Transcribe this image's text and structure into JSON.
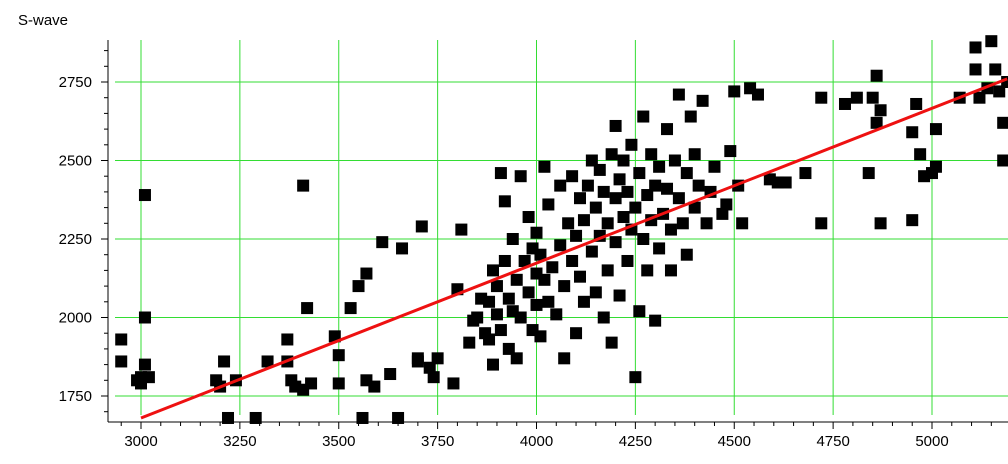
{
  "chart_data": {
    "type": "scatter",
    "title": "",
    "ylabel": "S-wave",
    "xlabel": "",
    "xlim": [
      2940,
      5190
    ],
    "ylim": [
      1680,
      2880
    ],
    "x_ticks": [
      3000,
      3250,
      3500,
      3750,
      4000,
      4250,
      4500,
      4750,
      5000
    ],
    "y_ticks": [
      1750,
      2000,
      2250,
      2500,
      2750
    ],
    "grid": true,
    "colors": {
      "grid": "#33dd33",
      "points": "#000000",
      "fit_line": "#ee1111",
      "axis": "#000000"
    },
    "series": [
      {
        "type": "scatter",
        "points": [
          [
            2950,
            1930
          ],
          [
            2950,
            1860
          ],
          [
            2990,
            1800
          ],
          [
            3000,
            1790
          ],
          [
            3000,
            1810
          ],
          [
            3010,
            1850
          ],
          [
            3010,
            2000
          ],
          [
            3010,
            2390
          ],
          [
            3020,
            1810
          ],
          [
            3190,
            1800
          ],
          [
            3200,
            1780
          ],
          [
            3210,
            1860
          ],
          [
            3220,
            1680
          ],
          [
            3240,
            1800
          ],
          [
            3290,
            1680
          ],
          [
            3320,
            1860
          ],
          [
            3370,
            1930
          ],
          [
            3370,
            1860
          ],
          [
            3380,
            1800
          ],
          [
            3390,
            1780
          ],
          [
            3410,
            1770
          ],
          [
            3410,
            2420
          ],
          [
            3420,
            2030
          ],
          [
            3430,
            1790
          ],
          [
            3490,
            1940
          ],
          [
            3500,
            1880
          ],
          [
            3500,
            1790
          ],
          [
            3530,
            2030
          ],
          [
            3550,
            2100
          ],
          [
            3560,
            1680
          ],
          [
            3570,
            2140
          ],
          [
            3570,
            1800
          ],
          [
            3590,
            1780
          ],
          [
            3610,
            2240
          ],
          [
            3630,
            1820
          ],
          [
            3650,
            1680
          ],
          [
            3660,
            2220
          ],
          [
            3700,
            1870
          ],
          [
            3700,
            1860
          ],
          [
            3710,
            2290
          ],
          [
            3730,
            1840
          ],
          [
            3740,
            1810
          ],
          [
            3750,
            1870
          ],
          [
            3790,
            1790
          ],
          [
            3800,
            2090
          ],
          [
            3810,
            2280
          ],
          [
            3830,
            1920
          ],
          [
            3840,
            1990
          ],
          [
            3850,
            2000
          ],
          [
            3860,
            2060
          ],
          [
            3870,
            1950
          ],
          [
            3880,
            1930
          ],
          [
            3880,
            2050
          ],
          [
            3890,
            1850
          ],
          [
            3890,
            2150
          ],
          [
            3900,
            2010
          ],
          [
            3900,
            2100
          ],
          [
            3910,
            1960
          ],
          [
            3910,
            2460
          ],
          [
            3920,
            2370
          ],
          [
            3920,
            2180
          ],
          [
            3930,
            1900
          ],
          [
            3930,
            2060
          ],
          [
            3940,
            2020
          ],
          [
            3940,
            2250
          ],
          [
            3950,
            1870
          ],
          [
            3950,
            2120
          ],
          [
            3960,
            2000
          ],
          [
            3960,
            2450
          ],
          [
            3970,
            2180
          ],
          [
            3980,
            2080
          ],
          [
            3980,
            2320
          ],
          [
            3990,
            1960
          ],
          [
            3990,
            2220
          ],
          [
            4000,
            2040
          ],
          [
            4000,
            2270
          ],
          [
            4000,
            2140
          ],
          [
            4010,
            1940
          ],
          [
            4010,
            2200
          ],
          [
            4020,
            2120
          ],
          [
            4020,
            2480
          ],
          [
            4030,
            2050
          ],
          [
            4030,
            2360
          ],
          [
            4040,
            2160
          ],
          [
            4050,
            2010
          ],
          [
            4060,
            2420
          ],
          [
            4060,
            2230
          ],
          [
            4070,
            1870
          ],
          [
            4070,
            2100
          ],
          [
            4080,
            2300
          ],
          [
            4090,
            2180
          ],
          [
            4090,
            2450
          ],
          [
            4100,
            1950
          ],
          [
            4100,
            2260
          ],
          [
            4110,
            2130
          ],
          [
            4110,
            2380
          ],
          [
            4120,
            2310
          ],
          [
            4120,
            2050
          ],
          [
            4130,
            2420
          ],
          [
            4140,
            2210
          ],
          [
            4140,
            2500
          ],
          [
            4150,
            2080
          ],
          [
            4150,
            2350
          ],
          [
            4160,
            2260
          ],
          [
            4160,
            2470
          ],
          [
            4170,
            2000
          ],
          [
            4170,
            2400
          ],
          [
            4180,
            2150
          ],
          [
            4180,
            2300
          ],
          [
            4190,
            2520
          ],
          [
            4190,
            1920
          ],
          [
            4200,
            2380
          ],
          [
            4200,
            2240
          ],
          [
            4200,
            2610
          ],
          [
            4210,
            2070
          ],
          [
            4210,
            2440
          ],
          [
            4220,
            2320
          ],
          [
            4220,
            2500
          ],
          [
            4230,
            2180
          ],
          [
            4230,
            2400
          ],
          [
            4240,
            2280
          ],
          [
            4240,
            2550
          ],
          [
            4250,
            1810
          ],
          [
            4250,
            2350
          ],
          [
            4260,
            2460
          ],
          [
            4260,
            2020
          ],
          [
            4270,
            2250
          ],
          [
            4270,
            2640
          ],
          [
            4280,
            2390
          ],
          [
            4280,
            2150
          ],
          [
            4290,
            2310
          ],
          [
            4290,
            2520
          ],
          [
            4300,
            2420
          ],
          [
            4300,
            1990
          ],
          [
            4310,
            2220
          ],
          [
            4310,
            2480
          ],
          [
            4320,
            2330
          ],
          [
            4330,
            2410
          ],
          [
            4330,
            2600
          ],
          [
            4340,
            2280
          ],
          [
            4340,
            2150
          ],
          [
            4350,
            2500
          ],
          [
            4360,
            2380
          ],
          [
            4360,
            2710
          ],
          [
            4370,
            2300
          ],
          [
            4380,
            2460
          ],
          [
            4380,
            2200
          ],
          [
            4390,
            2640
          ],
          [
            4400,
            2350
          ],
          [
            4400,
            2520
          ],
          [
            4410,
            2420
          ],
          [
            4420,
            2690
          ],
          [
            4430,
            2300
          ],
          [
            4440,
            2400
          ],
          [
            4450,
            2480
          ],
          [
            4470,
            2330
          ],
          [
            4480,
            2360
          ],
          [
            4490,
            2530
          ],
          [
            4500,
            2720
          ],
          [
            4510,
            2420
          ],
          [
            4520,
            2300
          ],
          [
            4540,
            2730
          ],
          [
            4560,
            2710
          ],
          [
            4590,
            2440
          ],
          [
            4610,
            2430
          ],
          [
            4630,
            2430
          ],
          [
            4680,
            2460
          ],
          [
            4720,
            2700
          ],
          [
            4720,
            2300
          ],
          [
            4780,
            2680
          ],
          [
            4810,
            2700
          ],
          [
            4840,
            2460
          ],
          [
            4850,
            2700
          ],
          [
            4860,
            2770
          ],
          [
            4860,
            2620
          ],
          [
            4870,
            2300
          ],
          [
            4870,
            2660
          ],
          [
            4950,
            2590
          ],
          [
            4950,
            2310
          ],
          [
            4960,
            2680
          ],
          [
            4970,
            2520
          ],
          [
            4980,
            2450
          ],
          [
            5000,
            2460
          ],
          [
            5010,
            2480
          ],
          [
            5010,
            2600
          ],
          [
            5070,
            2700
          ],
          [
            5110,
            2790
          ],
          [
            5110,
            2860
          ],
          [
            5120,
            2700
          ],
          [
            5140,
            2730
          ],
          [
            5150,
            2880
          ],
          [
            5160,
            2790
          ],
          [
            5170,
            2720
          ],
          [
            5180,
            2620
          ],
          [
            5180,
            2500
          ],
          [
            5190,
            2750
          ]
        ]
      },
      {
        "type": "line",
        "x": [
          3000,
          5190
        ],
        "y": [
          1680,
          2760
        ]
      }
    ]
  }
}
